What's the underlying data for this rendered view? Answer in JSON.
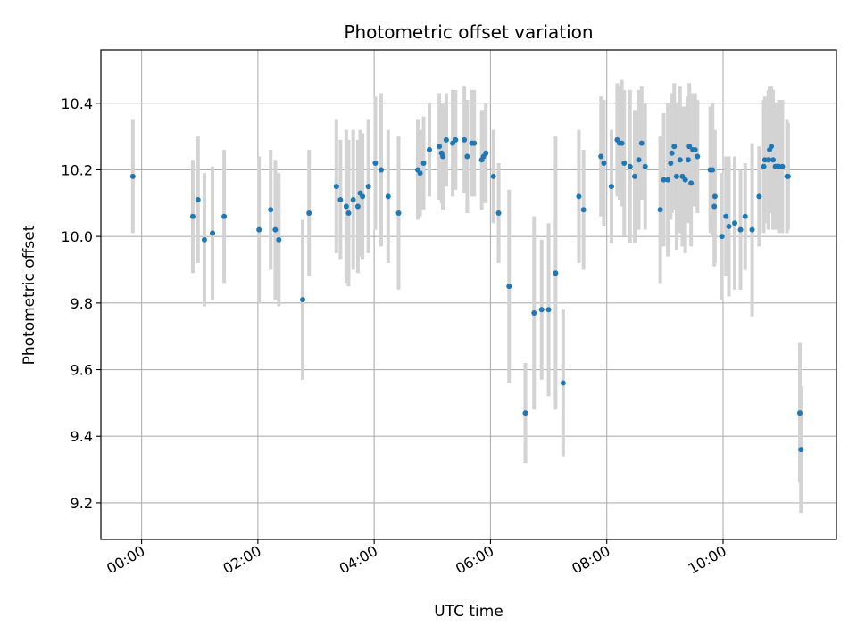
{
  "chart_data": {
    "type": "scatter",
    "title": "Photometric offset variation",
    "xlabel": "UTC time",
    "ylabel": "Photometric offset",
    "xlim": [
      -0.7,
      11.95
    ],
    "ylim": [
      9.09,
      10.56
    ],
    "x_ticks": [
      {
        "value": 0,
        "label": "00:00"
      },
      {
        "value": 2,
        "label": "02:00"
      },
      {
        "value": 4,
        "label": "04:00"
      },
      {
        "value": 6,
        "label": "06:00"
      },
      {
        "value": 8,
        "label": "08:00"
      },
      {
        "value": 10,
        "label": "10:00"
      }
    ],
    "y_ticks": [
      {
        "value": 9.2,
        "label": "9.2"
      },
      {
        "value": 9.4,
        "label": "9.4"
      },
      {
        "value": 9.6,
        "label": "9.6"
      },
      {
        "value": 9.8,
        "label": "9.8"
      },
      {
        "value": 10.0,
        "label": "10.0"
      },
      {
        "value": 10.2,
        "label": "10.2"
      },
      {
        "value": 10.4,
        "label": "10.4"
      }
    ],
    "grid": true,
    "colors": {
      "point": "#1f77b4",
      "errorbar": "#d3d3d3",
      "grid": "#b0b0b0"
    },
    "series": [
      {
        "points": [
          [
            -0.15,
            10.18,
            0.17
          ],
          [
            0.88,
            10.06,
            0.17
          ],
          [
            0.97,
            10.11,
            0.19
          ],
          [
            1.08,
            9.99,
            0.2
          ],
          [
            1.22,
            10.01,
            0.2
          ],
          [
            1.42,
            10.06,
            0.2
          ],
          [
            2.02,
            10.02,
            0.22
          ],
          [
            2.22,
            10.08,
            0.18
          ],
          [
            2.3,
            10.02,
            0.21
          ],
          [
            2.36,
            9.99,
            0.2
          ],
          [
            2.77,
            9.81,
            0.24
          ],
          [
            2.88,
            10.07,
            0.19
          ],
          [
            3.35,
            10.15,
            0.2
          ],
          [
            3.42,
            10.11,
            0.18
          ],
          [
            3.52,
            10.09,
            0.23
          ],
          [
            3.56,
            10.07,
            0.22
          ],
          [
            3.64,
            10.11,
            0.21
          ],
          [
            3.72,
            10.09,
            0.2
          ],
          [
            3.76,
            10.13,
            0.19
          ],
          [
            3.8,
            10.12,
            0.19
          ],
          [
            3.9,
            10.15,
            0.2
          ],
          [
            4.02,
            10.22,
            0.2
          ],
          [
            4.12,
            10.2,
            0.23
          ],
          [
            4.24,
            10.12,
            0.2
          ],
          [
            4.42,
            10.07,
            0.23
          ],
          [
            4.75,
            10.2,
            0.15
          ],
          [
            4.79,
            10.19,
            0.13
          ],
          [
            4.85,
            10.22,
            0.14
          ],
          [
            4.95,
            10.26,
            0.14
          ],
          [
            5.12,
            10.27,
            0.16
          ],
          [
            5.16,
            10.25,
            0.15
          ],
          [
            5.18,
            10.24,
            0.16
          ],
          [
            5.24,
            10.29,
            0.14
          ],
          [
            5.35,
            10.28,
            0.16
          ],
          [
            5.4,
            10.29,
            0.15
          ],
          [
            5.55,
            10.29,
            0.16
          ],
          [
            5.6,
            10.24,
            0.17
          ],
          [
            5.68,
            10.28,
            0.16
          ],
          [
            5.72,
            10.28,
            0.16
          ],
          [
            5.85,
            10.23,
            0.15
          ],
          [
            5.88,
            10.24,
            0.14
          ],
          [
            5.92,
            10.25,
            0.15
          ],
          [
            6.05,
            10.18,
            0.14
          ],
          [
            6.14,
            10.07,
            0.15
          ],
          [
            6.32,
            9.85,
            0.29
          ],
          [
            6.6,
            9.47,
            0.15
          ],
          [
            6.75,
            9.77,
            0.29
          ],
          [
            6.88,
            9.78,
            0.21
          ],
          [
            7.0,
            9.78,
            0.26
          ],
          [
            7.12,
            9.89,
            0.41
          ],
          [
            7.25,
            9.56,
            0.22
          ],
          [
            7.52,
            10.12,
            0.2
          ],
          [
            7.6,
            10.08,
            0.18
          ],
          [
            7.9,
            10.24,
            0.18
          ],
          [
            7.95,
            10.22,
            0.19
          ],
          [
            8.08,
            10.15,
            0.17
          ],
          [
            8.18,
            10.29,
            0.17
          ],
          [
            8.22,
            10.28,
            0.17
          ],
          [
            8.26,
            10.28,
            0.19
          ],
          [
            8.3,
            10.22,
            0.22
          ],
          [
            8.4,
            10.21,
            0.23
          ],
          [
            8.48,
            10.18,
            0.2
          ],
          [
            8.55,
            10.23,
            0.21
          ],
          [
            8.6,
            10.28,
            0.17
          ],
          [
            8.66,
            10.21,
            0.19
          ],
          [
            8.92,
            10.08,
            0.22
          ],
          [
            8.98,
            10.17,
            0.2
          ],
          [
            9.05,
            10.17,
            0.23
          ],
          [
            9.1,
            10.22,
            0.17
          ],
          [
            9.12,
            10.25,
            0.18
          ],
          [
            9.16,
            10.27,
            0.19
          ],
          [
            9.2,
            10.18,
            0.22
          ],
          [
            9.26,
            10.23,
            0.22
          ],
          [
            9.3,
            10.18,
            0.21
          ],
          [
            9.35,
            10.17,
            0.22
          ],
          [
            9.4,
            10.23,
            0.19
          ],
          [
            9.42,
            10.27,
            0.19
          ],
          [
            9.45,
            10.16,
            0.19
          ],
          [
            9.48,
            10.26,
            0.17
          ],
          [
            9.52,
            10.26,
            0.17
          ],
          [
            9.56,
            10.24,
            0.17
          ],
          [
            9.78,
            10.2,
            0.19
          ],
          [
            9.82,
            10.2,
            0.2
          ],
          [
            9.85,
            10.09,
            0.18
          ],
          [
            9.86,
            10.12,
            0.2
          ],
          [
            9.98,
            10.0,
            0.19
          ],
          [
            10.05,
            10.06,
            0.18
          ],
          [
            10.1,
            10.03,
            0.21
          ],
          [
            10.2,
            10.04,
            0.2
          ],
          [
            10.3,
            10.02,
            0.18
          ],
          [
            10.38,
            10.06,
            0.16
          ],
          [
            10.5,
            10.02,
            0.26
          ],
          [
            10.62,
            10.12,
            0.15
          ],
          [
            10.7,
            10.21,
            0.2
          ],
          [
            10.72,
            10.23,
            0.19
          ],
          [
            10.78,
            10.23,
            0.21
          ],
          [
            10.8,
            10.26,
            0.19
          ],
          [
            10.83,
            10.27,
            0.18
          ],
          [
            10.86,
            10.23,
            0.21
          ],
          [
            10.9,
            10.21,
            0.19
          ],
          [
            10.93,
            10.21,
            0.19
          ],
          [
            10.96,
            10.21,
            0.2
          ],
          [
            11.02,
            10.21,
            0.2
          ],
          [
            11.1,
            10.18,
            0.17
          ],
          [
            11.12,
            10.18,
            0.16
          ],
          [
            11.32,
            9.47,
            0.21
          ],
          [
            11.34,
            9.36,
            0.19
          ]
        ]
      }
    ]
  }
}
